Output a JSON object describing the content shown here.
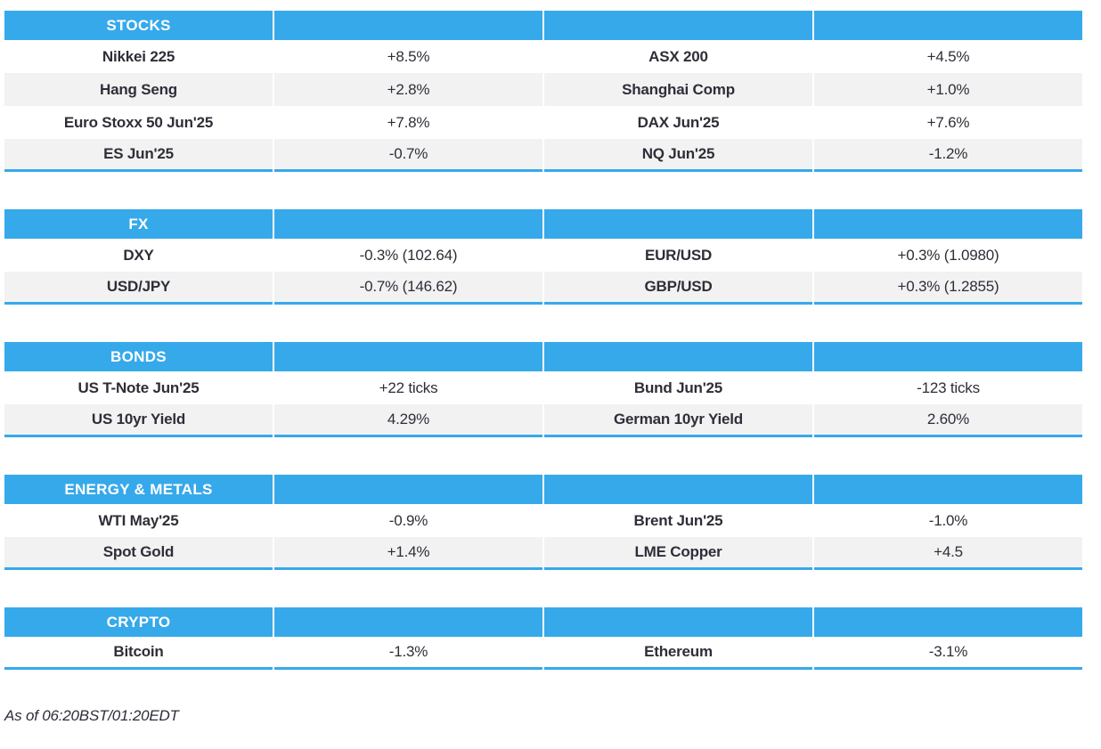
{
  "colors": {
    "accent": "#36a9ea",
    "row_alt": "#f2f2f3",
    "text": "#2e2e38",
    "header_text": "#ffffff"
  },
  "sections": [
    {
      "title": "STOCKS",
      "rows": [
        {
          "cells": [
            "Nikkei 225",
            "+8.5%",
            "ASX 200",
            "+4.5%"
          ]
        },
        {
          "cells": [
            "Hang Seng",
            "+2.8%",
            "Shanghai Comp",
            "+1.0%"
          ]
        },
        {
          "cells": [
            "Euro Stoxx 50 Jun'25",
            "+7.8%",
            "DAX Jun'25",
            "+7.6%"
          ]
        },
        {
          "cells": [
            "ES Jun'25",
            "-0.7%",
            "NQ Jun'25",
            "-1.2%"
          ]
        }
      ]
    },
    {
      "title": "FX",
      "rows": [
        {
          "cells": [
            "DXY",
            "-0.3% (102.64)",
            "EUR/USD",
            "+0.3% (1.0980)"
          ]
        },
        {
          "cells": [
            "USD/JPY",
            "-0.7% (146.62)",
            "GBP/USD",
            "+0.3% (1.2855)"
          ]
        }
      ]
    },
    {
      "title": "BONDS",
      "rows": [
        {
          "cells": [
            "US T-Note Jun'25",
            "+22 ticks",
            "Bund Jun'25",
            "-123 ticks"
          ]
        },
        {
          "cells": [
            "US 10yr Yield",
            "4.29%",
            "German 10yr Yield",
            "2.60%"
          ]
        }
      ]
    },
    {
      "title": "ENERGY & METALS",
      "rows": [
        {
          "cells": [
            "WTI May'25",
            "-0.9%",
            "Brent Jun'25",
            "-1.0%"
          ]
        },
        {
          "cells": [
            "Spot Gold",
            "+1.4%",
            "LME Copper",
            "+4.5"
          ]
        }
      ]
    },
    {
      "title": "CRYPTO",
      "rows": [
        {
          "cells": [
            "Bitcoin",
            "-1.3%",
            "Ethereum",
            "-3.1%"
          ]
        }
      ]
    }
  ],
  "footer": {
    "as_of": "As of 06:20BST/01:20EDT"
  }
}
